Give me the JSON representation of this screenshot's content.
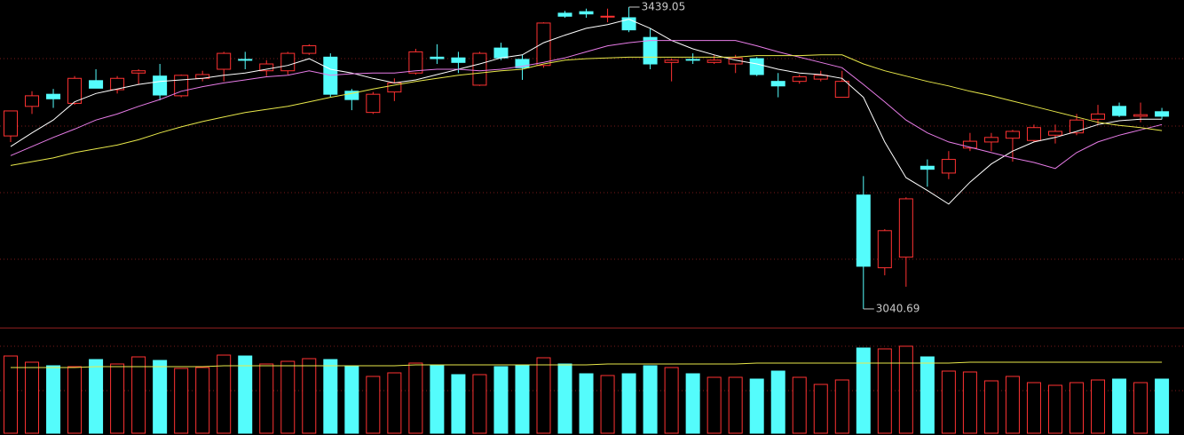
{
  "chart_data": {
    "type": "candlestick",
    "up_color": "#ff3232",
    "down_color": "#54fcfc",
    "ylim": [
      3026.6,
      3448.4
    ],
    "open": [
      3269,
      3308,
      3324,
      3312,
      3342,
      3330,
      3352,
      3348,
      3322,
      3345,
      3357,
      3370,
      3355,
      3355,
      3378,
      3373,
      3328,
      3300,
      3327,
      3352,
      3373,
      3372,
      3336,
      3385,
      3370,
      3362,
      3431,
      3433,
      3426,
      3425,
      3399,
      3366,
      3370,
      3366,
      3364,
      3371,
      3341,
      3341,
      3344,
      3320,
      3191,
      3095,
      3109,
      3229,
      3220,
      3253,
      3261,
      3266,
      3263,
      3270,
      3273,
      3291,
      3308,
      3295,
      3301
    ],
    "high": [
      3302,
      3328,
      3331,
      3348,
      3357,
      3348,
      3357,
      3364,
      3350,
      3355,
      3380,
      3380,
      3369,
      3380,
      3390,
      3378,
      3331,
      3327,
      3345,
      3384,
      3390,
      3380,
      3380,
      3392,
      3376,
      3419,
      3434,
      3437,
      3437,
      3439.05,
      3411,
      3371,
      3378,
      3376,
      3376,
      3373,
      3352,
      3350,
      3355,
      3355,
      3216,
      3146,
      3188,
      3238,
      3249,
      3273,
      3273,
      3277,
      3284,
      3284,
      3298,
      3310,
      3313,
      3313,
      3306
    ],
    "low": [
      3261,
      3298,
      3306,
      3310,
      3332,
      3325,
      3337,
      3316,
      3320,
      3341,
      3341,
      3357,
      3348,
      3350,
      3376,
      3320,
      3303,
      3298,
      3315,
      3350,
      3364,
      3352,
      3335,
      3369,
      3343,
      3359,
      3425,
      3425,
      3419,
      3406,
      3357,
      3341,
      3364,
      3364,
      3352,
      3348,
      3320,
      3338,
      3341,
      3320,
      3040.69,
      3085,
      3070,
      3202,
      3212,
      3249,
      3249,
      3235,
      3261,
      3259,
      3270,
      3284,
      3294,
      3287,
      3291
    ],
    "close": [
      3302,
      3322,
      3318,
      3345,
      3332,
      3345,
      3355,
      3323,
      3349,
      3350,
      3378,
      3369,
      3364,
      3378,
      3388,
      3324,
      3317,
      3324,
      3339,
      3380,
      3371,
      3366,
      3378,
      3372,
      3359,
      3418,
      3427,
      3430,
      3427,
      3409,
      3364,
      3369,
      3369,
      3369,
      3372,
      3350,
      3335,
      3347,
      3349,
      3341,
      3097,
      3144,
      3186,
      3225,
      3238,
      3262,
      3267,
      3275,
      3280,
      3275,
      3290,
      3298,
      3296,
      3297,
      3295
    ],
    "ma_lines": [
      {
        "color": "#ffffff",
        "values": [
          3255,
          3273,
          3290,
          3314,
          3325,
          3331,
          3337,
          3341,
          3343,
          3345,
          3349,
          3352,
          3357,
          3362,
          3371,
          3357,
          3352,
          3345,
          3339,
          3343,
          3350,
          3357,
          3364,
          3372,
          3376,
          3392,
          3402,
          3411,
          3416,
          3423,
          3411,
          3395,
          3384,
          3376,
          3369,
          3364,
          3357,
          3352,
          3350,
          3345,
          3320,
          3261,
          3214,
          3197,
          3179,
          3208,
          3232,
          3249,
          3261,
          3267,
          3275,
          3284,
          3289,
          3291,
          3291
        ]
      },
      {
        "color": "#e87ce8",
        "values": [
          3243,
          3255,
          3267,
          3278,
          3290,
          3298,
          3308,
          3317,
          3328,
          3334,
          3339,
          3343,
          3347,
          3349,
          3355,
          3349,
          3351,
          3352,
          3352,
          3355,
          3357,
          3357,
          3355,
          3357,
          3361,
          3366,
          3372,
          3380,
          3388,
          3392,
          3395,
          3395,
          3395,
          3395,
          3395,
          3388,
          3380,
          3373,
          3366,
          3359,
          3337,
          3314,
          3290,
          3273,
          3261,
          3254,
          3247,
          3240,
          3234,
          3226,
          3247,
          3261,
          3270,
          3277,
          3284
        ]
      },
      {
        "color": "#e8e84a",
        "values": [
          3230,
          3235,
          3240,
          3247,
          3252,
          3257,
          3264,
          3273,
          3281,
          3288,
          3294,
          3300,
          3304,
          3308,
          3314,
          3320,
          3325,
          3331,
          3336,
          3341,
          3345,
          3349,
          3352,
          3355,
          3357,
          3364,
          3369,
          3371,
          3372,
          3373,
          3373,
          3373,
          3373,
          3373,
          3373,
          3375,
          3375,
          3375,
          3376,
          3376,
          3364,
          3355,
          3348,
          3341,
          3335,
          3328,
          3322,
          3315,
          3308,
          3301,
          3294,
          3287,
          3283,
          3280,
          3276
        ]
      }
    ],
    "volume": {
      "ylim": [
        0,
        118
      ],
      "values": [
        87,
        80,
        76,
        75,
        83,
        78,
        86,
        82,
        73,
        74,
        88,
        87,
        78,
        81,
        84,
        83,
        75,
        64,
        68,
        79,
        76,
        66,
        66,
        75,
        77,
        85,
        78,
        67,
        65,
        67,
        76,
        74,
        67,
        63,
        63,
        61,
        70,
        63,
        55,
        60,
        96,
        95,
        98,
        86,
        70,
        69,
        59,
        64,
        57,
        54,
        57,
        60,
        61,
        57,
        61
      ],
      "ma": {
        "color": "#e8e84a",
        "values": [
          74,
          74,
          74,
          74,
          75,
          75,
          75,
          75,
          75,
          75,
          76,
          76,
          76,
          76,
          76,
          76,
          76,
          76,
          76,
          77,
          77,
          77,
          77,
          77,
          77,
          77,
          77,
          77,
          78,
          78,
          78,
          78,
          78,
          78,
          78,
          79,
          79,
          79,
          79,
          79,
          79,
          79,
          79,
          79,
          79,
          80,
          80,
          80,
          80,
          80,
          80,
          80,
          80,
          80,
          80
        ]
      }
    }
  }
}
